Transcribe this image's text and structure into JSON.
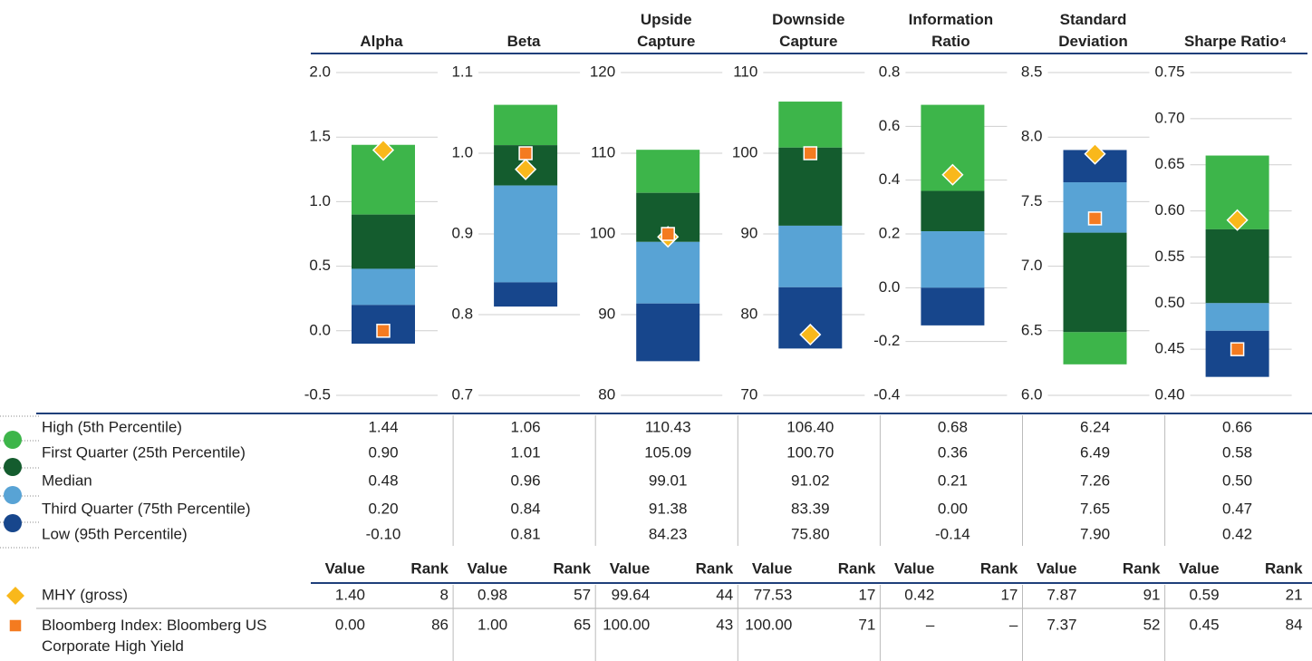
{
  "chart_data": [
    {
      "type": "floating-bar",
      "title": "Alpha",
      "ylim": [
        -0.5,
        2.0
      ],
      "yticks": [
        -0.5,
        {
          "value": 0,
          "label": "0.0"
        },
        0.5,
        {
          "value": 1,
          "label": "1.0"
        },
        1.5,
        {
          "value": 2,
          "label": "2.0"
        }
      ],
      "values": [
        1.44,
        0.9,
        0.48,
        0.2,
        -0.1
      ],
      "value_labels": [
        "1.44",
        "0.90",
        "0.48",
        "0.20",
        "-0.10"
      ],
      "points": [
        {
          "value": 1.4,
          "label": "1.40",
          "rank": 8
        },
        {
          "value": 0,
          "label": "0.00",
          "rank": 86
        }
      ]
    },
    {
      "type": "floating-bar",
      "title": "Beta",
      "ylim": [
        0.7,
        1.1
      ],
      "yticks": [
        0.7,
        0.8,
        0.9,
        {
          "value": 1,
          "label": "1.0"
        },
        1.1
      ],
      "values": [
        1.06,
        1.01,
        0.96,
        0.84,
        0.81
      ],
      "value_labels": [
        "1.06",
        "1.01",
        "0.96",
        "0.84",
        "0.81"
      ],
      "points": [
        {
          "value": 0.98,
          "label": "0.98",
          "rank": 57
        },
        {
          "value": 1,
          "label": "1.00",
          "rank": 65
        }
      ]
    },
    {
      "type": "floating-bar",
      "title": "Upside Capture",
      "ylim": [
        80,
        120
      ],
      "yticks": [
        80,
        90,
        100,
        110,
        120
      ],
      "values": [
        110.43,
        105.09,
        99.01,
        91.38,
        84.23
      ],
      "value_labels": [
        "110.43",
        "105.09",
        "99.01",
        "91.38",
        "84.23"
      ],
      "points": [
        {
          "value": 99.64,
          "label": "99.64",
          "rank": 44
        },
        {
          "value": 100,
          "label": "100.00",
          "rank": 43
        }
      ]
    },
    {
      "type": "floating-bar",
      "title": "Downside Capture",
      "ylim": [
        70,
        110
      ],
      "yticks": [
        70,
        80,
        90,
        100,
        110
      ],
      "values": [
        106.4,
        100.7,
        91.02,
        83.39,
        75.8
      ],
      "value_labels": [
        "106.40",
        "100.70",
        "91.02",
        "83.39",
        "75.80"
      ],
      "points": [
        {
          "value": 77.53,
          "label": "77.53",
          "rank": 17
        },
        {
          "value": 100,
          "label": "100.00",
          "rank": 71
        }
      ]
    },
    {
      "type": "floating-bar",
      "title": "Information Ratio",
      "ylim": [
        -0.4,
        0.8
      ],
      "yticks": [
        -0.4,
        -0.2,
        {
          "value": 0,
          "label": "0.0"
        },
        0.2,
        0.4,
        0.6,
        0.8
      ],
      "values": [
        0.68,
        0.36,
        0.21,
        0,
        -0.14
      ],
      "value_labels": [
        "0.68",
        "0.36",
        "0.21",
        "0.00",
        "-0.14"
      ],
      "points": [
        {
          "value": 0.42,
          "label": "0.42",
          "rank": 17
        },
        {
          "value": null,
          "label": "–",
          "rank": "–"
        }
      ]
    },
    {
      "type": "floating-bar",
      "title": "Standard Deviation",
      "ylim": [
        6.0,
        8.5
      ],
      "yticks": [
        {
          "value": 6,
          "label": "6.0"
        },
        6.5,
        {
          "value": 7,
          "label": "7.0"
        },
        7.5,
        {
          "value": 8,
          "label": "8.0"
        },
        8.5
      ],
      "values": [
        6.24,
        6.49,
        7.26,
        7.65,
        7.9
      ],
      "value_labels": [
        "6.24",
        "6.49",
        "7.26",
        "7.65",
        "7.90"
      ],
      "points": [
        {
          "value": 7.87,
          "label": "7.87",
          "rank": 91
        },
        {
          "value": 7.37,
          "label": "7.37",
          "rank": 52
        }
      ]
    },
    {
      "type": "floating-bar",
      "title": "Sharpe Ratio⁴",
      "ylim": [
        0.4,
        0.75
      ],
      "yticks": [
        {
          "value": 0.4,
          "label": "0.40"
        },
        0.45,
        {
          "value": 0.5,
          "label": "0.50"
        },
        0.55,
        {
          "value": 0.6,
          "label": "0.60"
        },
        0.65,
        {
          "value": 0.7,
          "label": "0.70"
        },
        0.75
      ],
      "values": [
        0.66,
        0.58,
        0.5,
        0.47,
        0.42
      ],
      "value_labels": [
        "0.66",
        "0.58",
        "0.50",
        "0.47",
        "0.42"
      ],
      "points": [
        {
          "value": 0.59,
          "label": "0.59",
          "rank": 21
        },
        {
          "value": 0.45,
          "label": "0.45",
          "rank": 84
        }
      ]
    }
  ],
  "legend": {
    "rows": [
      "High (5th Percentile)",
      "First Quarter (25th Percentile)",
      "Median",
      "Third Quarter (75th Percentile)",
      "Low (95th Percentile)"
    ],
    "band_colors": [
      "#3db54a",
      "#145c2e",
      "#58a3d5",
      "#17468c"
    ],
    "series": [
      {
        "name": "MHY (gross)",
        "color": "#f9b81b",
        "shape": "diamond"
      },
      {
        "name": "Bloomberg Index: Bloomberg US Corporate High Yield",
        "color": "#f47b20",
        "shape": "square"
      }
    ]
  },
  "table": {
    "value_header": "Value",
    "rank_header": "Rank"
  }
}
